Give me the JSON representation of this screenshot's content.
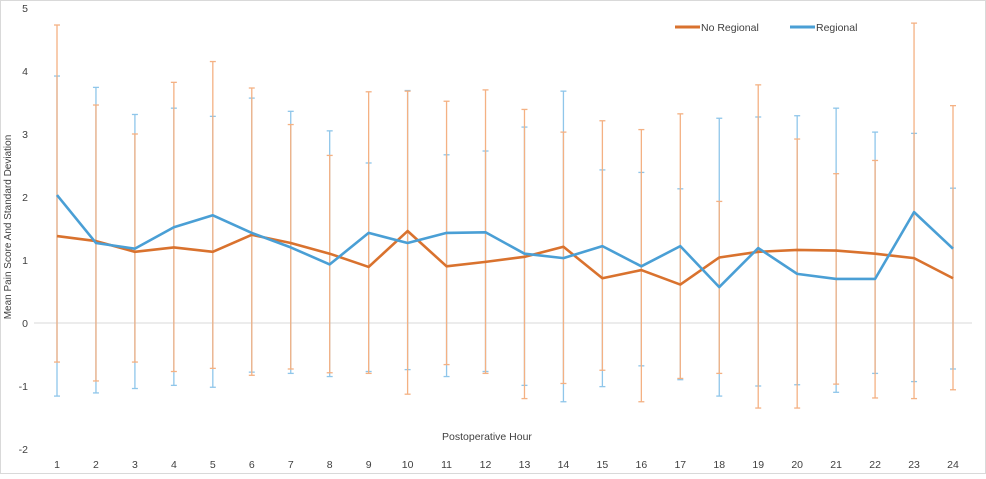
{
  "chart_data": {
    "type": "line",
    "title": "",
    "xlabel": "Postoperative Hour",
    "ylabel": "Mean Pain Score And Standard Deviation",
    "ylim": [
      -2,
      5
    ],
    "yticks": [
      "-2",
      "-1",
      "0",
      "1",
      "2",
      "3",
      "4",
      "5"
    ],
    "categories": [
      "1",
      "2",
      "3",
      "4",
      "5",
      "6",
      "7",
      "8",
      "9",
      "10",
      "11",
      "12",
      "13",
      "14",
      "15",
      "16",
      "17",
      "18",
      "19",
      "20",
      "21",
      "22",
      "23",
      "24"
    ],
    "grid": "zero line only",
    "legend_position": "top-right",
    "series": [
      {
        "name": "No Regional",
        "color": "#D9722E",
        "error_color": "#F4B183",
        "values": [
          1.38,
          1.3,
          1.13,
          1.2,
          1.13,
          1.4,
          1.27,
          1.1,
          0.89,
          1.46,
          0.9,
          0.97,
          1.05,
          1.21,
          0.71,
          0.84,
          0.61,
          1.04,
          1.13,
          1.16,
          1.15,
          1.1,
          1.03,
          0.71
        ],
        "error_upper": [
          4.73,
          3.46,
          3.0,
          3.82,
          4.15,
          3.73,
          3.15,
          2.66,
          3.67,
          3.68,
          3.52,
          3.7,
          3.39,
          3.03,
          3.21,
          3.07,
          3.32,
          1.93,
          3.78,
          2.92,
          2.37,
          2.58,
          4.76,
          3.45
        ],
        "error_lower": [
          -0.62,
          -0.92,
          -0.62,
          -0.77,
          -0.72,
          -0.83,
          -0.73,
          -0.79,
          -0.8,
          -1.13,
          -0.66,
          -0.8,
          -1.2,
          -0.96,
          -0.75,
          -1.25,
          -0.88,
          -0.8,
          -1.35,
          -1.35,
          -0.97,
          -1.19,
          -1.2,
          -1.06
        ]
      },
      {
        "name": "Regional",
        "color": "#4A9FD5",
        "error_color": "#8FC6EA",
        "values": [
          2.03,
          1.27,
          1.18,
          1.52,
          1.71,
          1.43,
          1.2,
          0.93,
          1.43,
          1.27,
          1.43,
          1.44,
          1.1,
          1.03,
          1.22,
          0.9,
          1.22,
          0.57,
          1.19,
          0.78,
          0.7,
          0.7,
          1.76,
          1.18
        ],
        "error_upper": [
          3.92,
          3.74,
          3.31,
          3.41,
          3.28,
          3.57,
          3.36,
          3.05,
          2.54,
          3.69,
          2.67,
          2.73,
          3.11,
          3.68,
          2.43,
          2.39,
          2.13,
          3.25,
          3.27,
          3.29,
          3.41,
          3.03,
          3.01,
          2.14
        ],
        "error_lower": [
          -1.16,
          -1.11,
          -1.04,
          -0.99,
          -1.02,
          -0.78,
          -0.8,
          -0.85,
          -0.77,
          -0.74,
          -0.85,
          -0.77,
          -0.99,
          -1.25,
          -1.01,
          -0.68,
          -0.9,
          -1.16,
          -1.0,
          -0.98,
          -1.1,
          -0.8,
          -0.93,
          -0.73
        ]
      }
    ]
  }
}
